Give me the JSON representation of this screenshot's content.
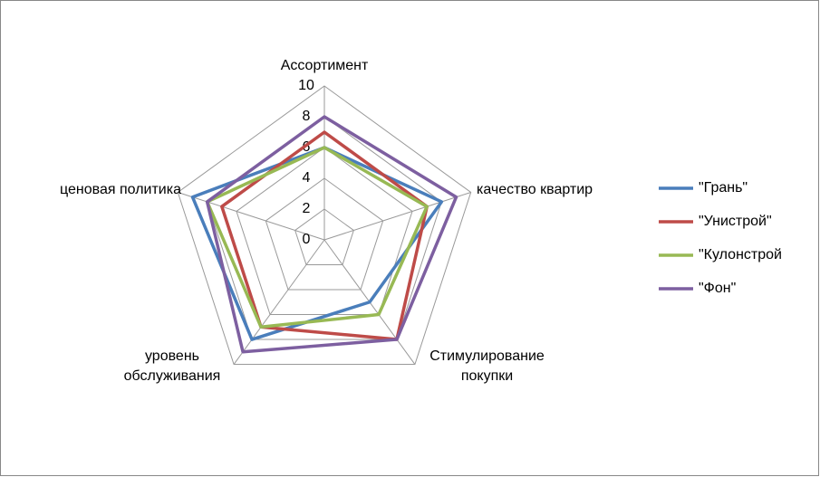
{
  "chart_data": {
    "type": "radar",
    "categories": [
      "Ассортимент",
      "качество квартир",
      "Стимулирование покупки",
      "уровень обслуживания",
      "ценовая политика"
    ],
    "series": [
      {
        "name": "\"Грань\"",
        "color": "#4a7ebb",
        "values": [
          6,
          8,
          5,
          8,
          9
        ]
      },
      {
        "name": "\"Унистрой\"",
        "color": "#be4b48",
        "values": [
          7,
          7,
          8,
          7,
          7
        ]
      },
      {
        "name": "\"Кулонстрой",
        "color": "#98b954",
        "values": [
          6,
          7,
          6,
          7,
          8
        ]
      },
      {
        "name": "\"Фон\"",
        "color": "#7d5fa0",
        "values": [
          8,
          9,
          8,
          9,
          8
        ]
      }
    ],
    "ylim": [
      0,
      10
    ],
    "yticks": [
      0,
      2,
      4,
      6,
      8,
      10
    ],
    "grid": true,
    "legend": "right"
  }
}
